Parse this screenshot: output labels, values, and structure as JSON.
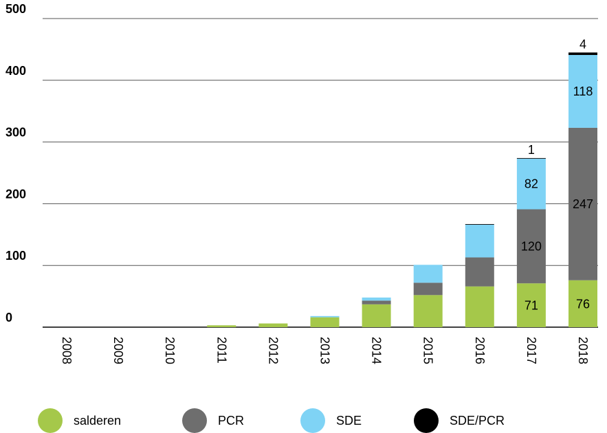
{
  "chart_data": {
    "type": "stacked_bar",
    "categories": [
      "2008",
      "2009",
      "2010",
      "2011",
      "2012",
      "2013",
      "2014",
      "2015",
      "2016",
      "2017",
      "2018"
    ],
    "series": [
      {
        "name": "salderen",
        "color": "#a5c84a",
        "values": [
          0,
          0,
          0,
          3,
          6,
          16,
          37,
          52,
          66,
          71,
          76
        ],
        "value_labels": [
          null,
          null,
          null,
          null,
          null,
          null,
          null,
          null,
          null,
          "71",
          "76"
        ]
      },
      {
        "name": "PCR",
        "color": "#6e6e6e",
        "values": [
          0,
          0,
          0,
          0,
          0,
          0,
          6,
          20,
          47,
          120,
          247
        ],
        "value_labels": [
          null,
          null,
          null,
          null,
          null,
          null,
          null,
          null,
          null,
          "120",
          "247"
        ]
      },
      {
        "name": "SDE",
        "color": "#7fd3f5",
        "values": [
          0,
          0,
          0,
          0,
          0,
          2,
          5,
          29,
          53,
          82,
          118
        ],
        "value_labels": [
          null,
          null,
          null,
          null,
          null,
          null,
          null,
          null,
          null,
          "82",
          "118"
        ]
      },
      {
        "name": "SDE/PCR",
        "color": "#000000",
        "values": [
          0,
          0,
          0,
          0,
          0,
          0,
          0,
          0,
          1,
          1,
          4
        ],
        "value_labels": [
          null,
          null,
          null,
          null,
          null,
          null,
          null,
          null,
          null,
          "1",
          "4"
        ]
      }
    ],
    "ylim": [
      0,
      500
    ],
    "yticks": [
      0,
      100,
      200,
      300,
      400,
      500
    ],
    "grid": true
  }
}
